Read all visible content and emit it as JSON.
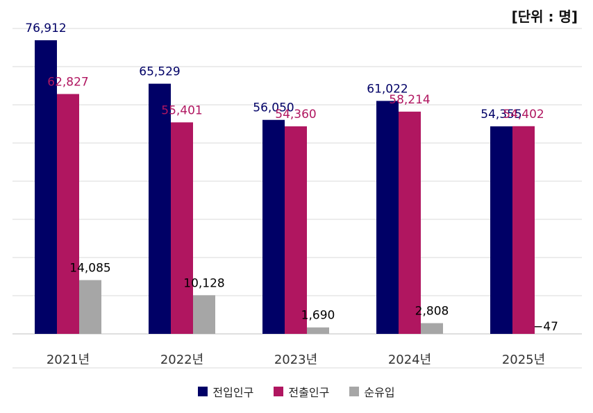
{
  "unit_label": "[단위 : 명]",
  "colors": {
    "in": "#000066",
    "out": "#b01660",
    "net": "#a6a6a6"
  },
  "chart_data": {
    "type": "bar",
    "categories": [
      "2021년",
      "2022년",
      "2023년",
      "2024년",
      "2025년"
    ],
    "series": [
      {
        "name": "전입인구",
        "values": [
          76912,
          65529,
          56050,
          61022,
          54355
        ],
        "labels": [
          "76,912",
          "65,529",
          "56,050",
          "61,022",
          "54,355"
        ]
      },
      {
        "name": "전출인구",
        "values": [
          62827,
          55401,
          54360,
          58214,
          54402
        ],
        "labels": [
          "62,827",
          "55,401",
          "54,360",
          "58,214",
          "54,402"
        ]
      },
      {
        "name": "순유입",
        "values": [
          14085,
          10128,
          1690,
          2808,
          -47
        ],
        "labels": [
          "14,085",
          "10,128",
          "1,690",
          "2,808",
          "−47"
        ]
      }
    ],
    "ylim": [
      0,
      80000
    ],
    "grid": true,
    "legend": "bottom"
  }
}
